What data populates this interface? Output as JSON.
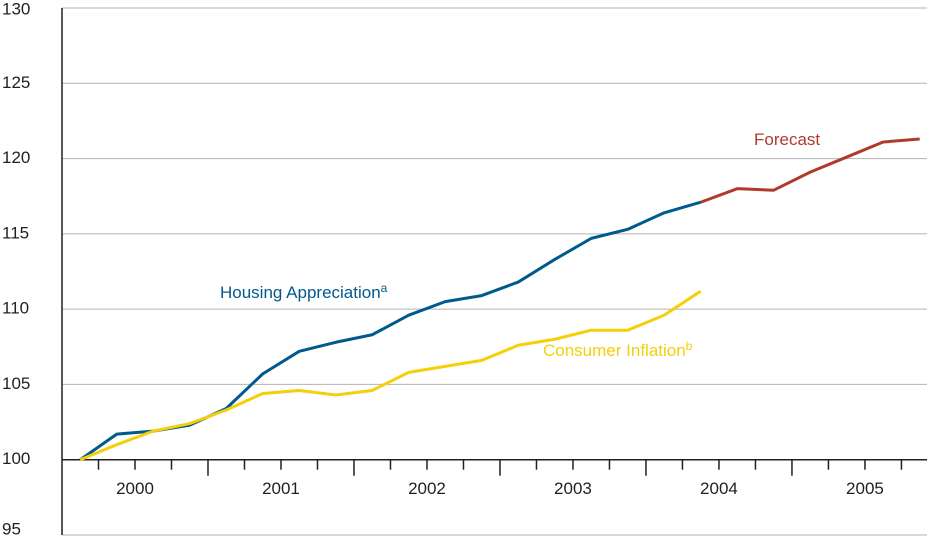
{
  "chart_data": {
    "type": "line",
    "x": [
      2000.125,
      2000.375,
      2000.625,
      2000.875,
      2001.125,
      2001.375,
      2001.625,
      2001.875,
      2002.125,
      2002.375,
      2002.625,
      2002.875,
      2003.125,
      2003.375,
      2003.625,
      2003.875,
      2004.125,
      2004.375,
      2004.625,
      2004.875,
      2005.125,
      2005.375,
      2005.625,
      2005.875
    ],
    "series": [
      {
        "name": "Housing Appreciation",
        "superscript": "a",
        "color": "#005a8c",
        "values": [
          100,
          101.7,
          101.9,
          102.3,
          103.4,
          105.7,
          107.2,
          107.8,
          108.3,
          109.6,
          110.5,
          110.9,
          111.8,
          113.3,
          114.7,
          115.3,
          116.4,
          117.1,
          null,
          null,
          null,
          null,
          null,
          null
        ]
      },
      {
        "name": "Consumer Inflation",
        "superscript": "b",
        "color": "#f5cf0a",
        "values": [
          100,
          101,
          101.9,
          102.4,
          103.3,
          104.4,
          104.6,
          104.3,
          104.6,
          105.8,
          106.2,
          106.6,
          107.6,
          108,
          108.6,
          108.6,
          109.6,
          111.2,
          null,
          null,
          null,
          null,
          null,
          null
        ]
      },
      {
        "name": "Forecast",
        "color": "#b03a2e",
        "values": [
          null,
          null,
          null,
          null,
          null,
          null,
          null,
          null,
          null,
          null,
          null,
          null,
          null,
          null,
          null,
          null,
          null,
          117.1,
          118,
          117.9,
          119.1,
          120.1,
          121.1,
          121.3
        ]
      }
    ],
    "xlim": [
      2000,
      2005.925
    ],
    "xticks": [
      {
        "value": 2000.5,
        "label": "2000"
      },
      {
        "value": 2001.5,
        "label": "2001"
      },
      {
        "value": 2002.5,
        "label": "2002"
      },
      {
        "value": 2003.5,
        "label": "2003"
      },
      {
        "value": 2004.5,
        "label": "2004"
      },
      {
        "value": 2005.5,
        "label": "2005"
      }
    ],
    "ylim": [
      95,
      130
    ],
    "yticks": [
      95,
      100,
      105,
      110,
      115,
      120,
      125,
      130
    ],
    "baseline": 100,
    "grid": true
  }
}
